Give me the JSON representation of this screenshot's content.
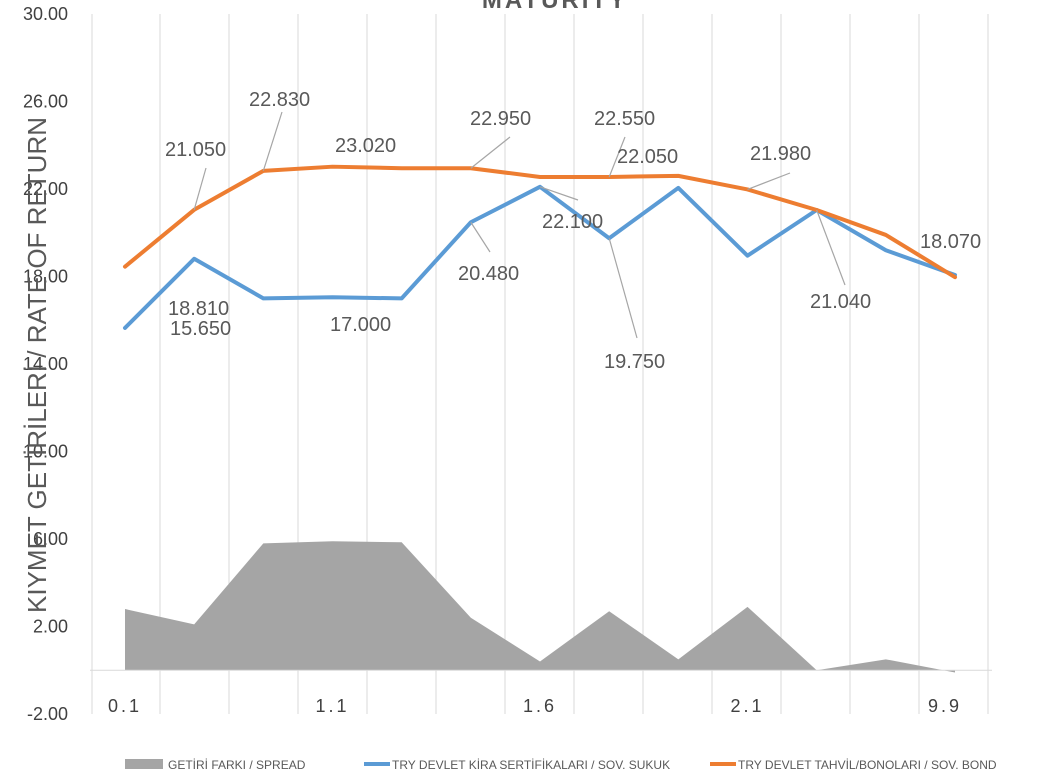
{
  "chart_data": {
    "type": "line",
    "title": "MATURITY",
    "ylabel": "KIYMET GETİRİLERİ / RATE OF RETURN",
    "xlabel": "",
    "ylim": [
      -2,
      30
    ],
    "y_ticks": [
      "-2.00",
      "2.00",
      "6.00",
      "10.00",
      "14.00",
      "18.00",
      "22.00",
      "26.00",
      "30.00"
    ],
    "x_tick_labels": [
      {
        "index": 0,
        "label": "0.1"
      },
      {
        "index": 3,
        "label": "1.1"
      },
      {
        "index": 6,
        "label": "1.6"
      },
      {
        "index": 9,
        "label": "2.1"
      },
      {
        "index": 12,
        "label": "9.9"
      }
    ],
    "categories_count": 13,
    "series": [
      {
        "name": "GETİRİ FARKI / SPREAD",
        "kind": "area",
        "color": "#a5a5a5",
        "values": [
          2.8,
          2.1,
          5.8,
          5.9,
          5.85,
          2.4,
          0.4,
          2.7,
          0.5,
          2.9,
          0.0,
          0.5,
          -0.1
        ]
      },
      {
        "name": "TRY DEVLET KİRA SERTİFİKALARI / SOV. SUKUK",
        "kind": "line",
        "color": "#5b9bd5",
        "values": [
          15.65,
          18.81,
          17.0,
          17.05,
          17.0,
          20.48,
          22.1,
          19.75,
          22.05,
          18.95,
          21.04,
          19.2,
          18.07
        ]
      },
      {
        "name": "TRY DEVLET TAHVİL/BONOLARI / SOV. BOND",
        "kind": "line",
        "color": "#ed7d31",
        "values": [
          18.45,
          21.05,
          22.83,
          23.02,
          22.95,
          22.95,
          22.55,
          22.55,
          22.6,
          21.98,
          21.04,
          19.9,
          17.97
        ]
      }
    ],
    "data_labels": [
      {
        "text": "15.650"
      },
      {
        "text": "18.810"
      },
      {
        "text": "21.050"
      },
      {
        "text": "22.830"
      },
      {
        "text": "23.020"
      },
      {
        "text": "17.000"
      },
      {
        "text": "22.950"
      },
      {
        "text": "20.480"
      },
      {
        "text": "22.100"
      },
      {
        "text": "22.550"
      },
      {
        "text": "19.750"
      },
      {
        "text": "22.050"
      },
      {
        "text": "21.980"
      },
      {
        "text": "21.040"
      },
      {
        "text": "18.070"
      }
    ],
    "grid": {
      "vertical": true,
      "horizontal": false
    },
    "legend_position": "bottom"
  }
}
